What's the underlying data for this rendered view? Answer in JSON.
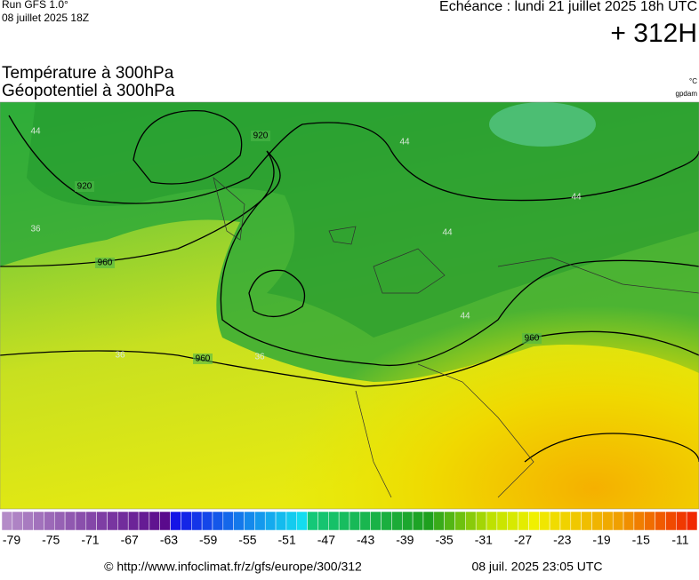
{
  "header": {
    "run": "Run GFS 1.0°",
    "run_date": "08 juillet 2025 18Z",
    "echeance": "Echéance : lundi 21 juillet 2025 18h UTC",
    "lead": "+ 312H",
    "title1": "Température à 300hPa",
    "title2": "Géopotentiel à 300hPa",
    "unit1": "°C",
    "unit2": "gpdam"
  },
  "map": {
    "geopotential_labels": [
      "920",
      "920",
      "960",
      "960",
      "960"
    ],
    "temperature_labels": [
      "44",
      "44",
      "44",
      "44",
      "44",
      "36",
      "36",
      "36"
    ]
  },
  "scale": {
    "labels": [
      -79,
      -75,
      -71,
      -67,
      -63,
      -59,
      -55,
      -51,
      -47,
      -43,
      -39,
      -35,
      -31,
      -27,
      -23,
      -19,
      -15,
      -11
    ]
  },
  "footer": {
    "url": "© http://www.infoclimat.fr/z/gfs/europe/300/312",
    "generated": "08 juil. 2025 23:05 UTC"
  }
}
